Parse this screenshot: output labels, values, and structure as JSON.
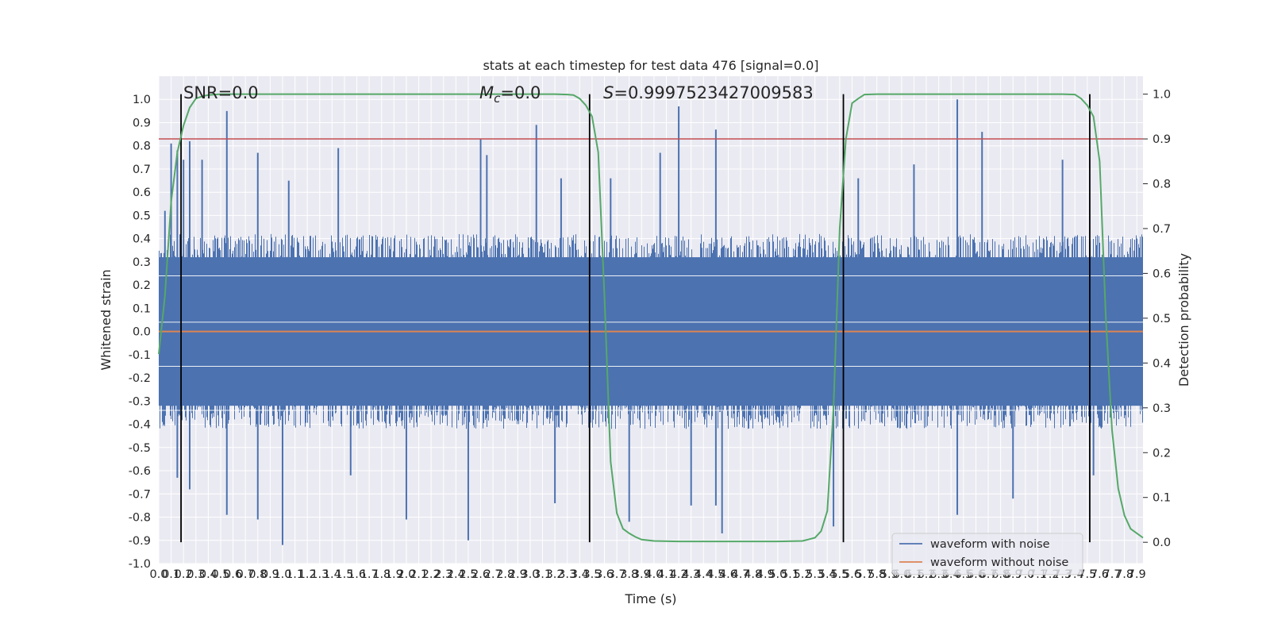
{
  "chart_data": {
    "type": "line",
    "title": "stats at each timestep for test data 476 [signal=0.0]",
    "xlabel": "Time (s)",
    "ylabel": "Whitened strain",
    "y2label": "Detection probability",
    "xlim": [
      0.0,
      7.95
    ],
    "ylim": [
      -1.0,
      1.1
    ],
    "y2lim": [
      -0.0475,
      1.04
    ],
    "x_tick_step": 0.1,
    "y_ticks": [
      "-1.0",
      "-0.9",
      "-0.8",
      "-0.7",
      "-0.6",
      "-0.5",
      "-0.4",
      "-0.3",
      "-0.2",
      "-0.1",
      "0.0",
      "0.1",
      "0.2",
      "0.3",
      "0.4",
      "0.5",
      "0.6",
      "0.7",
      "0.8",
      "0.9",
      "1.0"
    ],
    "y2_ticks": [
      "0.0",
      "0.1",
      "0.2",
      "0.3",
      "0.4",
      "0.5",
      "0.6",
      "0.7",
      "0.8",
      "0.9",
      "1.0"
    ],
    "grid": true,
    "annotations": {
      "snr": "SNR=0.0",
      "mc_symbol": "M",
      "mc_sub": "c",
      "mc_value": "=0.0",
      "s_symbol": "S",
      "s_value": "=0.9997523427009583"
    },
    "vertical_lines_x": [
      0.18,
      3.48,
      5.53,
      7.52
    ],
    "threshold_line_y2": 0.9,
    "series": [
      {
        "name": "waveform with noise",
        "color": "#4c72b0",
        "peaks_positive": [
          [
            0.05,
            0.52
          ],
          [
            0.1,
            0.81
          ],
          [
            0.15,
            0.78
          ],
          [
            0.2,
            0.74
          ],
          [
            0.25,
            0.82
          ],
          [
            0.35,
            0.74
          ],
          [
            0.55,
            0.95
          ],
          [
            0.8,
            0.77
          ],
          [
            1.05,
            0.65
          ],
          [
            1.45,
            0.79
          ],
          [
            2.65,
            0.76
          ],
          [
            2.6,
            0.83
          ],
          [
            3.05,
            0.89
          ],
          [
            3.25,
            0.66
          ],
          [
            3.65,
            0.66
          ],
          [
            4.05,
            0.77
          ],
          [
            4.2,
            0.97
          ],
          [
            4.5,
            0.87
          ],
          [
            5.65,
            0.66
          ],
          [
            6.1,
            0.72
          ],
          [
            6.45,
            1.0
          ],
          [
            6.65,
            0.86
          ],
          [
            7.3,
            0.74
          ]
        ],
        "peaks_negative": [
          [
            0.15,
            -0.63
          ],
          [
            0.25,
            -0.68
          ],
          [
            0.55,
            -0.79
          ],
          [
            0.8,
            -0.81
          ],
          [
            1.0,
            -0.92
          ],
          [
            1.55,
            -0.62
          ],
          [
            2.0,
            -0.81
          ],
          [
            2.5,
            -0.9
          ],
          [
            3.2,
            -0.74
          ],
          [
            3.8,
            -0.82
          ],
          [
            4.3,
            -0.75
          ],
          [
            4.5,
            -0.75
          ],
          [
            4.55,
            -0.87
          ],
          [
            5.45,
            -0.84
          ],
          [
            6.45,
            -0.79
          ],
          [
            6.9,
            -0.72
          ],
          [
            7.55,
            -0.62
          ]
        ],
        "envelope": 0.42
      },
      {
        "name": "waveform without noise",
        "color": "#dd8452",
        "x": [
          0.0,
          7.95
        ],
        "y": [
          0.0,
          0.0
        ]
      },
      {
        "name": "detection probability",
        "color": "#55a868",
        "x": [
          0.0,
          0.05,
          0.1,
          0.15,
          0.2,
          0.25,
          0.3,
          0.35,
          0.4,
          0.45,
          0.5,
          1.0,
          2.0,
          3.0,
          3.2,
          3.3,
          3.35,
          3.4,
          3.45,
          3.5,
          3.55,
          3.6,
          3.65,
          3.7,
          3.75,
          3.8,
          3.85,
          3.9,
          4.0,
          4.2,
          5.0,
          5.2,
          5.3,
          5.35,
          5.4,
          5.45,
          5.5,
          5.55,
          5.6,
          5.65,
          5.7,
          5.8,
          6.0,
          7.0,
          7.3,
          7.4,
          7.45,
          7.5,
          7.55,
          7.6,
          7.65,
          7.7,
          7.75,
          7.8,
          7.85,
          7.95
        ],
        "y": [
          0.42,
          0.55,
          0.76,
          0.87,
          0.93,
          0.97,
          0.99,
          0.995,
          0.998,
          0.999,
          1.0,
          1.0,
          1.0,
          1.0,
          1.0,
          0.999,
          0.998,
          0.99,
          0.975,
          0.95,
          0.87,
          0.55,
          0.18,
          0.065,
          0.03,
          0.02,
          0.012,
          0.006,
          0.003,
          0.002,
          0.002,
          0.003,
          0.01,
          0.025,
          0.07,
          0.3,
          0.7,
          0.9,
          0.98,
          0.99,
          0.999,
          1.0,
          1.0,
          1.0,
          1.0,
          0.999,
          0.99,
          0.975,
          0.95,
          0.85,
          0.5,
          0.25,
          0.12,
          0.06,
          0.03,
          0.01
        ]
      },
      {
        "name": "threshold",
        "color": "#c44e52"
      }
    ],
    "legend": {
      "placement": "lower-right",
      "entries": [
        "waveform with noise",
        "waveform without noise"
      ]
    }
  }
}
